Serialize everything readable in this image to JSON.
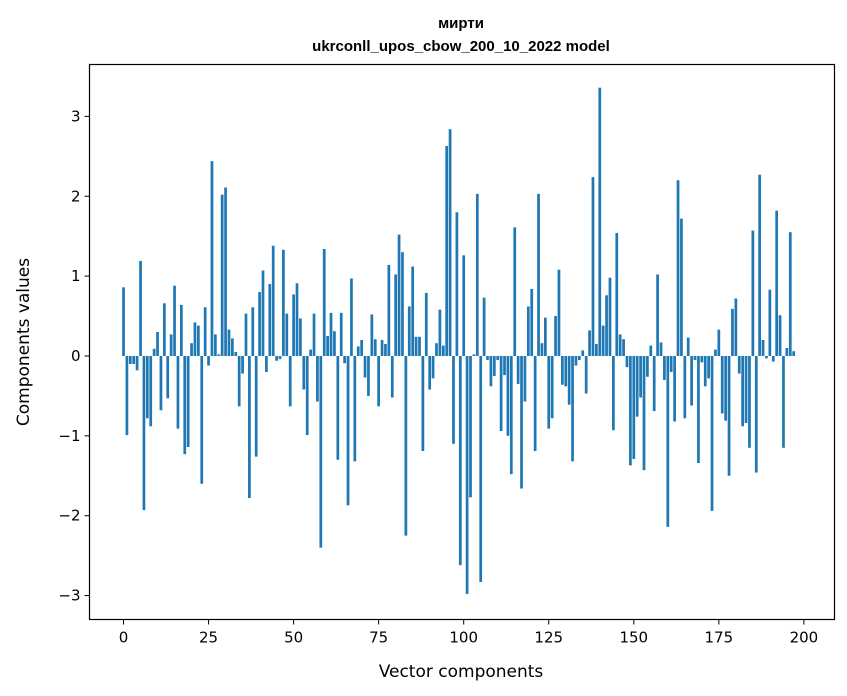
{
  "chart_data": {
    "type": "bar",
    "title_line1": "мирти",
    "title_line2": "ukrconll_upos_cbow_200_10_2022 model",
    "xlabel": "Vector components",
    "ylabel": "Components values",
    "xlim": [
      -10,
      209
    ],
    "ylim": [
      -3.3,
      3.65
    ],
    "xticks": [
      0,
      25,
      50,
      75,
      100,
      125,
      150,
      175,
      200
    ],
    "yticks": [
      -3,
      -2,
      -1,
      0,
      1,
      2,
      3
    ],
    "ytick_labels": [
      "−3",
      "−2",
      "−1",
      "0",
      "1",
      "2",
      "3"
    ],
    "grid": false,
    "bar_color": "#1f77b4",
    "values": [
      0.86,
      -0.99,
      -0.1,
      -0.1,
      -0.18,
      1.19,
      -1.93,
      -0.78,
      -0.88,
      0.09,
      0.3,
      -0.68,
      0.66,
      -0.53,
      0.27,
      0.88,
      -0.91,
      0.64,
      -1.23,
      -1.14,
      0.16,
      0.42,
      0.38,
      -1.6,
      0.61,
      -0.12,
      2.44,
      0.27,
      0.02,
      2.02,
      2.11,
      0.33,
      0.22,
      0.05,
      -0.63,
      -0.22,
      0.53,
      -1.78,
      0.61,
      -1.26,
      0.8,
      1.07,
      -0.2,
      0.9,
      1.38,
      -0.06,
      -0.04,
      1.33,
      0.53,
      -0.63,
      0.77,
      0.91,
      0.47,
      -0.42,
      -0.99,
      0.08,
      0.53,
      -0.57,
      -2.4,
      1.34,
      0.25,
      0.54,
      0.31,
      -1.3,
      0.54,
      -0.09,
      -1.87,
      0.97,
      -1.32,
      0.12,
      0.2,
      -0.27,
      -0.5,
      0.52,
      0.21,
      -0.63,
      0.2,
      0.15,
      1.14,
      -0.52,
      1.02,
      1.52,
      1.3,
      -2.25,
      0.62,
      1.12,
      0.24,
      0.24,
      -1.19,
      0.79,
      -0.42,
      -0.28,
      0.16,
      0.58,
      0.13,
      2.63,
      2.84,
      -1.1,
      1.8,
      -2.62,
      1.26,
      -2.98,
      -1.77,
      0.02,
      2.03,
      -2.83,
      0.73,
      -0.05,
      -0.38,
      -0.25,
      -0.05,
      -0.94,
      -0.24,
      -1.0,
      -1.48,
      1.61,
      -0.35,
      -1.66,
      -0.57,
      0.62,
      0.84,
      -1.19,
      2.03,
      0.16,
      0.48,
      -0.91,
      -0.78,
      0.5,
      1.08,
      -0.36,
      -0.38,
      -0.61,
      -1.32,
      -0.12,
      -0.05,
      0.07,
      -0.47,
      0.32,
      2.24,
      0.15,
      3.36,
      0.38,
      0.76,
      0.98,
      -0.93,
      1.54,
      0.27,
      0.21,
      -0.14,
      -1.37,
      -1.29,
      -0.76,
      -0.52,
      -1.43,
      -0.26,
      0.13,
      -0.69,
      1.02,
      0.17,
      -0.3,
      -2.14,
      -0.2,
      -0.82,
      2.2,
      1.72,
      -0.78,
      0.23,
      -0.62,
      -0.05,
      -1.34,
      -0.08,
      -0.38,
      -0.28,
      -1.94,
      0.08,
      0.33,
      -0.72,
      -0.81,
      -1.5,
      0.59,
      0.72,
      -0.22,
      -0.88,
      -0.84,
      -1.15,
      1.57,
      -1.46,
      2.27,
      0.2,
      -0.03,
      0.83,
      -0.07,
      1.82,
      0.51,
      -1.15,
      0.1,
      1.55,
      0.06
    ]
  }
}
